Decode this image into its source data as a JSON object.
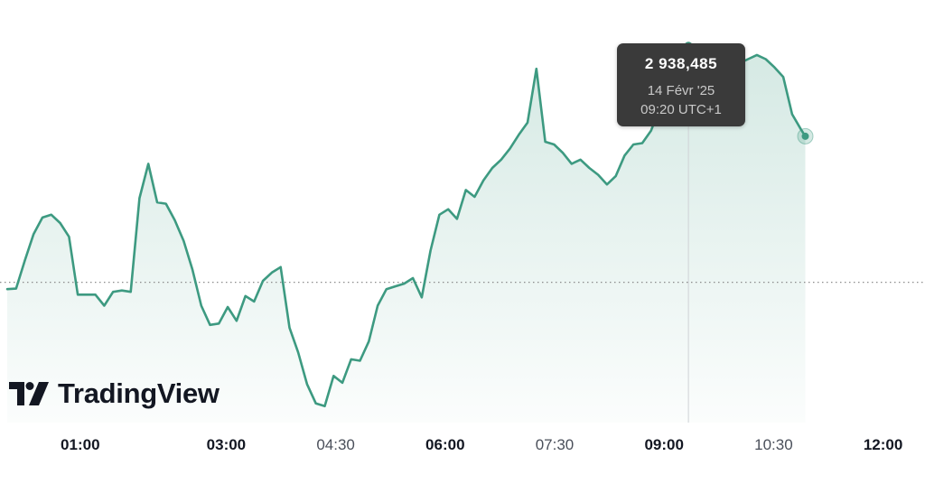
{
  "chart_data": {
    "type": "area",
    "x_tick_labels": [
      {
        "label": "01:00",
        "weight": "bold"
      },
      {
        "label": "03:00",
        "weight": "bold"
      },
      {
        "label": "04:30",
        "weight": "normal"
      },
      {
        "label": "06:00",
        "weight": "bold"
      },
      {
        "label": "07:30",
        "weight": "normal"
      },
      {
        "label": "09:00",
        "weight": "bold"
      },
      {
        "label": "10:30",
        "weight": "normal"
      },
      {
        "label": "12:00",
        "weight": "bold"
      }
    ],
    "x_range_hours": [
      0,
      12.5
    ],
    "x": [
      0.0,
      0.121,
      0.242,
      0.362,
      0.483,
      0.604,
      0.725,
      0.846,
      0.967,
      1.088,
      1.208,
      1.329,
      1.45,
      1.571,
      1.692,
      1.812,
      1.933,
      2.054,
      2.175,
      2.296,
      2.417,
      2.538,
      2.658,
      2.779,
      2.9,
      3.021,
      3.142,
      3.263,
      3.383,
      3.504,
      3.625,
      3.746,
      3.867,
      3.987,
      4.108,
      4.229,
      4.35,
      4.471,
      4.592,
      4.712,
      4.833,
      4.954,
      5.075,
      5.196,
      5.317,
      5.438,
      5.558,
      5.679,
      5.8,
      5.921,
      6.042,
      6.162,
      6.283,
      6.404,
      6.525,
      6.646,
      6.767,
      6.887,
      7.008,
      7.129,
      7.25,
      7.371,
      7.492,
      7.612,
      7.733,
      7.854,
      7.975,
      8.096,
      8.217,
      8.337,
      8.458,
      8.579,
      8.7,
      8.821,
      8.942,
      9.062,
      9.183,
      9.304,
      9.425,
      9.546,
      9.667,
      9.787,
      9.908,
      10.029,
      10.15,
      10.271,
      10.392,
      10.512,
      10.633,
      10.754,
      10.875,
      10.935
    ],
    "y": [
      2929650,
      2929670,
      2930700,
      2931650,
      2932250,
      2932350,
      2932050,
      2931550,
      2929450,
      2929450,
      2929450,
      2929050,
      2929550,
      2929600,
      2929550,
      2932950,
      2934200,
      2932800,
      2932750,
      2932150,
      2931400,
      2930350,
      2929050,
      2928350,
      2928400,
      2929000,
      2928500,
      2929400,
      2929200,
      2929950,
      2930250,
      2930450,
      2928250,
      2927350,
      2926200,
      2925500,
      2925400,
      2926500,
      2926250,
      2927100,
      2927050,
      2927750,
      2929050,
      2929650,
      2929750,
      2929850,
      2930050,
      2929350,
      2931050,
      2932350,
      2932550,
      2932200,
      2933250,
      2933000,
      2933600,
      2934050,
      2934350,
      2934750,
      2935250,
      2935700,
      2937650,
      2935000,
      2934900,
      2934600,
      2934200,
      2934350,
      2934050,
      2933800,
      2933450,
      2933750,
      2934500,
      2934900,
      2934950,
      2935400,
      2936250,
      2938485,
      2935600,
      2935600,
      2935800,
      2936250,
      2936050,
      2936850,
      2937750,
      2937850,
      2938000,
      2938150,
      2938000,
      2937700,
      2937350,
      2936000,
      2935450,
      2935200
    ],
    "y_range": [
      2925000,
      2939000
    ],
    "reference_line_value": 2929900,
    "hover_point": {
      "x": 9.333,
      "y": 2938485
    },
    "last_point": {
      "x": 10.935,
      "y": 2935200
    },
    "grid": false,
    "line_color": "#3d9a81",
    "fill_color": "#3d9a81",
    "crosshair_color": "#cfd2d6",
    "reference_line_color": "#8c8c8c"
  },
  "tooltip": {
    "price": "2 938,485",
    "date": "14 Févr '25",
    "time": "09:20 UTC+1"
  },
  "branding": {
    "logo_icon": "tradingview-logo-icon",
    "wordmark": "TradingView"
  }
}
